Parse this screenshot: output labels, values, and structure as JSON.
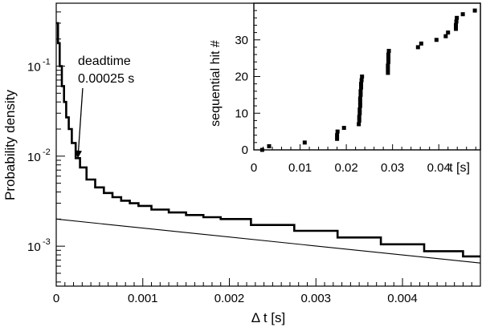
{
  "chart_data": [
    {
      "type": "line",
      "xlabel": "Δ t [s]",
      "ylabel": "Probability density",
      "xlim": [
        0,
        0.0049
      ],
      "ylim": [
        0.00036,
        0.5
      ],
      "y_scale": "log",
      "x_ticks": [
        0,
        0.001,
        0.002,
        0.003,
        0.004
      ],
      "x_tick_labels": [
        "0",
        "0.001",
        "0.002",
        "0.003",
        "0.004"
      ],
      "y_ticks": [
        0.001,
        0.01,
        0.1
      ],
      "y_tick_labels": [
        "10",
        "10",
        "10"
      ],
      "y_tick_exponents": [
        "-3",
        "-2",
        "-1"
      ],
      "annotation": {
        "line1": "deadtime",
        "line2": "0.00025 s",
        "x": 0.00025,
        "y": 0.0095
      },
      "series": [
        {
          "style": "step-histogram",
          "x": [
            1e-05,
            3e-05,
            5e-05,
            8e-05,
            0.0001,
            0.00013,
            0.00016,
            0.0002,
            0.00025,
            0.0003,
            0.0004,
            0.0005,
            0.0006,
            0.0007,
            0.0008,
            0.0009,
            0.001,
            0.0012,
            0.0014,
            0.0016,
            0.0018,
            0.002,
            0.0025,
            0.003,
            0.0035,
            0.004,
            0.0045,
            0.0049
          ],
          "y": [
            0.3,
            0.18,
            0.1,
            0.06,
            0.04,
            0.027,
            0.02,
            0.014,
            0.0095,
            0.0075,
            0.0055,
            0.0045,
            0.0039,
            0.0035,
            0.0032,
            0.003,
            0.0028,
            0.00255,
            0.00237,
            0.00222,
            0.0021,
            0.002,
            0.00172,
            0.00148,
            0.00125,
            0.00105,
            0.00088,
            0.00077
          ]
        },
        {
          "style": "line",
          "x": [
            0,
            0.0049
          ],
          "y": [
            0.002,
            0.00065
          ]
        }
      ]
    },
    {
      "type": "scatter",
      "xlabel": "t [s]",
      "ylabel": "sequential hit #",
      "xlim": [
        0,
        0.049
      ],
      "ylim": [
        0,
        40
      ],
      "x_ticks": [
        0,
        0.01,
        0.02,
        0.03,
        0.04
      ],
      "x_tick_labels": [
        "0",
        "0.01",
        "0.02",
        "0.03",
        "0.04"
      ],
      "y_ticks": [
        0,
        10,
        20,
        30
      ],
      "y_tick_labels": [
        "0",
        "10",
        "20",
        "30"
      ],
      "points": [
        [
          0.0018,
          0
        ],
        [
          0.0033,
          1
        ],
        [
          0.011,
          2
        ],
        [
          0.018,
          3
        ],
        [
          0.018,
          4
        ],
        [
          0.0181,
          5
        ],
        [
          0.0195,
          6
        ],
        [
          0.0227,
          7
        ],
        [
          0.0228,
          8
        ],
        [
          0.0228,
          9
        ],
        [
          0.0229,
          10
        ],
        [
          0.0229,
          11
        ],
        [
          0.023,
          12
        ],
        [
          0.023,
          13
        ],
        [
          0.023,
          14
        ],
        [
          0.0231,
          15
        ],
        [
          0.0231,
          16
        ],
        [
          0.0232,
          17
        ],
        [
          0.0232,
          18
        ],
        [
          0.0233,
          19
        ],
        [
          0.0234,
          20
        ],
        [
          0.029,
          21
        ],
        [
          0.029,
          22
        ],
        [
          0.029,
          23
        ],
        [
          0.0291,
          24
        ],
        [
          0.0291,
          25
        ],
        [
          0.0291,
          26
        ],
        [
          0.0292,
          27
        ],
        [
          0.0355,
          28
        ],
        [
          0.0362,
          29
        ],
        [
          0.0395,
          30
        ],
        [
          0.0415,
          31
        ],
        [
          0.042,
          32
        ],
        [
          0.0437,
          33
        ],
        [
          0.0437,
          34
        ],
        [
          0.0438,
          35
        ],
        [
          0.0439,
          36
        ],
        [
          0.0452,
          37
        ],
        [
          0.0478,
          38
        ]
      ]
    }
  ]
}
